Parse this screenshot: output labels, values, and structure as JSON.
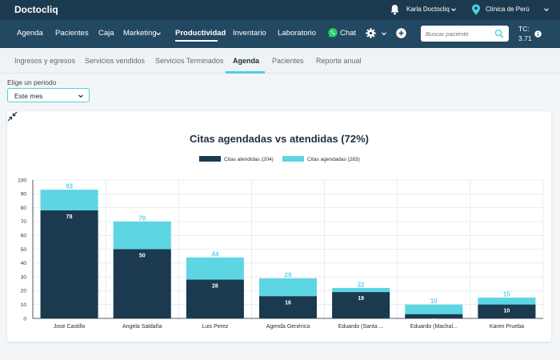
{
  "brand": "Doctocliq",
  "user": {
    "name": "Karla Doctocliq"
  },
  "clinic": {
    "name": "Clínica de Perú"
  },
  "nav": {
    "items": [
      "Agenda",
      "Pacientes",
      "Caja",
      "Marketing",
      "Productividad",
      "Inventario",
      "Laboratorio",
      "Chat"
    ],
    "active": "Productividad"
  },
  "search": {
    "placeholder": "Buscar paciente"
  },
  "tc": {
    "label": "TC:",
    "value": "3.71"
  },
  "subnav": {
    "items": [
      "Ingresos y egresos",
      "Servicios vendidos",
      "Servicios Terminados",
      "Agenda",
      "Pacientes",
      "Reporte anual"
    ],
    "active": "Agenda"
  },
  "period": {
    "label": "Elige un periodo",
    "value": "Este mes"
  },
  "colors": {
    "topbar": "#1c3a4f",
    "navbar": "#234861",
    "accent": "#4fd0e0",
    "dark_bar": "#1b3a4f",
    "light_bar": "#5dd5e3"
  },
  "icons": [
    "bell-icon",
    "map-pin-icon",
    "chevron-down-icon",
    "whatsapp-icon",
    "gear-icon",
    "plus-circle-icon",
    "search-icon",
    "info-icon",
    "collapse-icon"
  ],
  "chart_data": {
    "type": "bar",
    "title": "Citas agendadas vs atendidas (72%)",
    "categories": [
      "Jose Castillo",
      "Angela Saldaña",
      "Luis Perez",
      "Agenda Genérica",
      "Eduardo (Santa ...",
      "Eduardo (Machal...",
      "Karen Prueba"
    ],
    "series": [
      {
        "name": "Citas atendidas (204)",
        "values": [
          78,
          50,
          28,
          16,
          19,
          3,
          10
        ],
        "color": "#1b3a4f"
      },
      {
        "name": "Citas agendadas (283)",
        "values": [
          93,
          70,
          44,
          29,
          22,
          10,
          15
        ],
        "color": "#5dd5e3"
      }
    ],
    "ylim": [
      0,
      100
    ],
    "yticks": [
      0,
      10,
      20,
      30,
      40,
      50,
      60,
      70,
      80,
      90,
      100
    ],
    "grid": true,
    "legend": "top-center",
    "overlap": true
  }
}
